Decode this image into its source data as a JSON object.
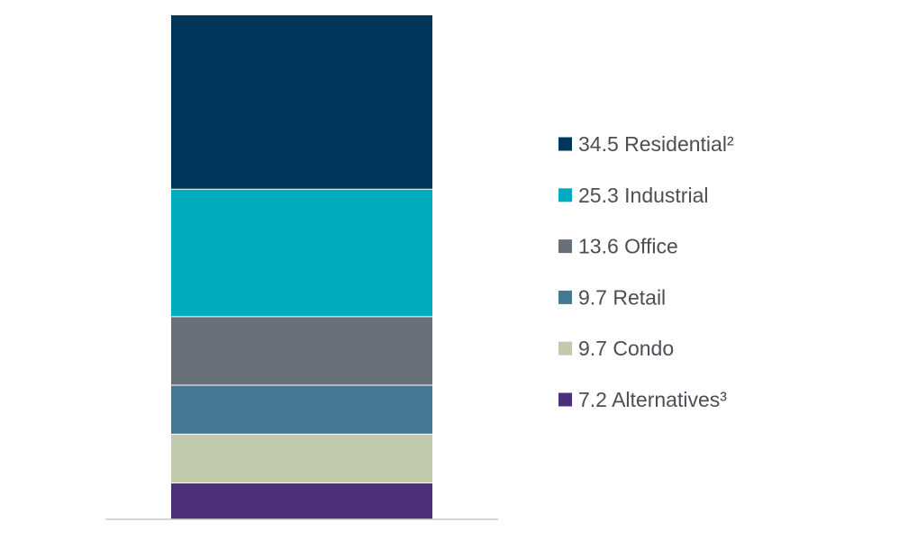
{
  "chart_data": {
    "type": "bar",
    "stacked": true,
    "ylim": [
      0,
      100
    ],
    "grid": false,
    "legend_position": "right",
    "series": [
      {
        "name": "Residential²",
        "value": 34.5,
        "label": "34.5 Residential²",
        "color": "#003659"
      },
      {
        "name": "Industrial",
        "value": 25.3,
        "label": "25.3 Industrial",
        "color": "#00acbf"
      },
      {
        "name": "Office",
        "value": 13.6,
        "label": "13.6 Office",
        "color": "#6a707a"
      },
      {
        "name": "Retail",
        "value": 9.7,
        "label": "9.7 Retail",
        "color": "#467895"
      },
      {
        "name": "Condo",
        "value": 9.7,
        "label": "9.7 Condo",
        "color": "#c2caae"
      },
      {
        "name": "Alternatives³",
        "value": 7.2,
        "label": "7.2 Alternatives³",
        "color": "#4c307a"
      }
    ]
  }
}
